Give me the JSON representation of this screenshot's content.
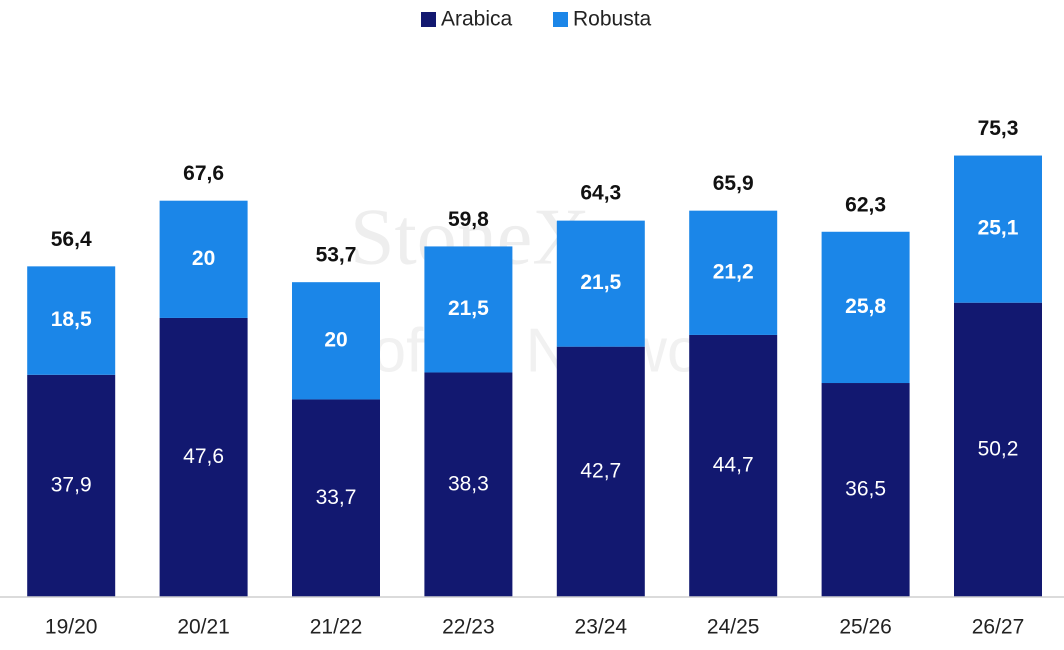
{
  "chart_data": {
    "type": "stacked_bar",
    "watermark": [
      "StoneX",
      "Coffee Network"
    ],
    "categories": [
      "19/20",
      "20/21",
      "21/22",
      "22/23",
      "23/24",
      "24/25",
      "25/26",
      "26/27"
    ],
    "series": [
      {
        "name": "Arabica",
        "color": "#121870",
        "values": [
          37.9,
          47.6,
          33.7,
          38.3,
          42.7,
          44.7,
          36.5,
          50.2
        ],
        "value_labels": [
          "37,9",
          "47,6",
          "33,7",
          "38,3",
          "42,7",
          "44,7",
          "36,5",
          "50,2"
        ]
      },
      {
        "name": "Robusta",
        "color": "#1b86e8",
        "values": [
          18.5,
          20,
          20,
          21.5,
          21.5,
          21.2,
          25.8,
          25.1
        ],
        "value_labels": [
          "18,5",
          "20",
          "20",
          "21,5",
          "21,5",
          "21,2",
          "25,8",
          "25,1"
        ]
      }
    ],
    "totals": [
      56.4,
      67.6,
      53.7,
      59.8,
      64.3,
      65.9,
      62.3,
      75.3
    ],
    "total_labels": [
      "56,4",
      "67,6",
      "53,7",
      "59,8",
      "64,3",
      "65,9",
      "62,3",
      "75,3"
    ],
    "ylim": [
      0,
      80
    ]
  }
}
